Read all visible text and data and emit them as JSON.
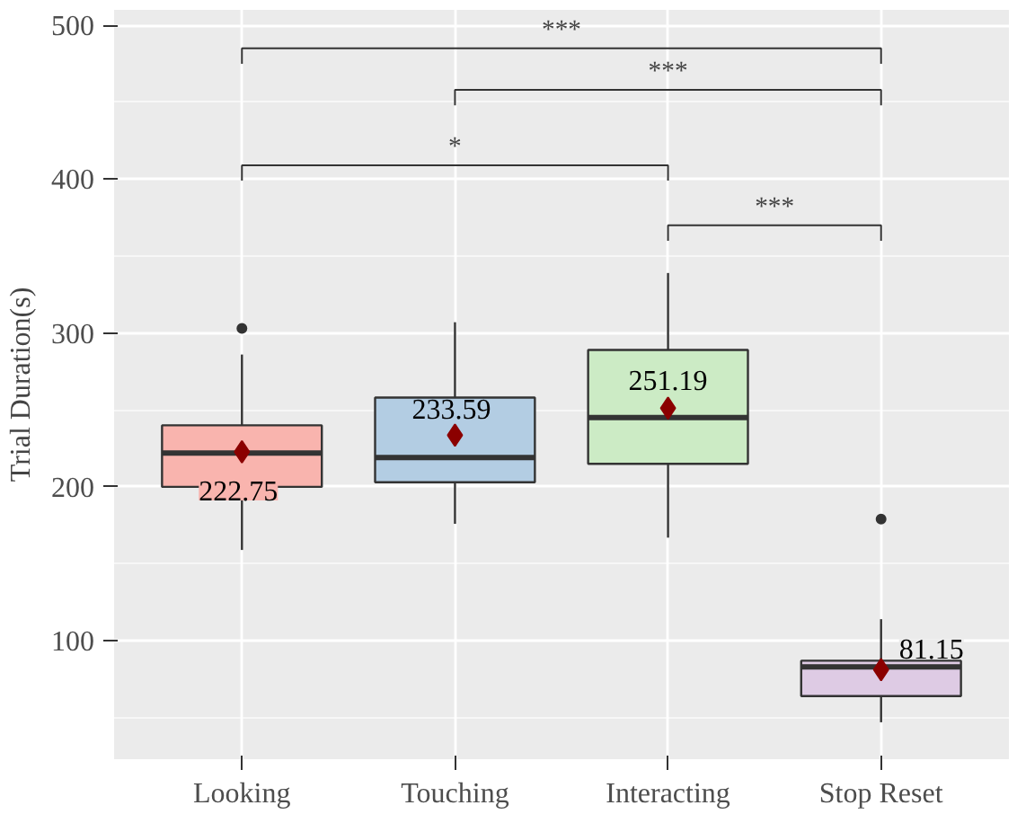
{
  "chart_data": {
    "type": "box",
    "ylabel": "Trial Duration(s)",
    "categories": [
      "Looking",
      "Touching",
      "Interacting",
      "Stop Reset"
    ],
    "colors": [
      "#f9b4ae",
      "#b3cde3",
      "#ccebc5",
      "#decbe4"
    ],
    "boxes": [
      {
        "low": 159,
        "q1": 200,
        "median": 222,
        "q3": 240,
        "high": 286,
        "mean": 222.75,
        "outliers": [
          303
        ]
      },
      {
        "low": 176,
        "q1": 203,
        "median": 219,
        "q3": 258,
        "high": 307,
        "mean": 233.59
      },
      {
        "low": 167,
        "q1": 215,
        "median": 245,
        "q3": 289,
        "high": 339,
        "mean": 251.19
      },
      {
        "low": 47,
        "q1": 64,
        "median": 83,
        "q3": 87,
        "high": 114,
        "mean": 81.15,
        "outliers": [
          179
        ]
      }
    ],
    "marker": "diamond",
    "ylim": [
      23,
      510
    ],
    "yticks": [
      100,
      200,
      300,
      400,
      500
    ],
    "grid": true,
    "annotations": [
      "222.75",
      "233.59",
      "251.19",
      "81.15",
      "***",
      "***",
      "*",
      "***"
    ]
  }
}
